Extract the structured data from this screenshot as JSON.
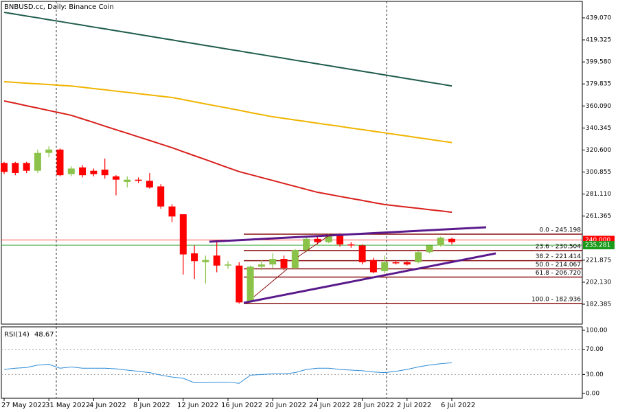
{
  "chart_data": [
    {
      "type": "candlestick",
      "title": "BNBUSD.cc, Daily:  Binance Coin",
      "categories": [
        "27 May 2022",
        null,
        null,
        null,
        "31 May 2022",
        null,
        null,
        null,
        "4 Jun 2022",
        null,
        null,
        null,
        "8 Jun 2022",
        null,
        null,
        null,
        "12 Jun 2022",
        null,
        null,
        null,
        "16 Jun 2022",
        null,
        null,
        null,
        "20 Jun 2022",
        null,
        null,
        null,
        "24 Jun 2022",
        null,
        null,
        null,
        "28 Jun 2022",
        null,
        null,
        null,
        "2 Jul 2022",
        null,
        null,
        null,
        "6 Jul 2022"
      ],
      "open": [
        309,
        309,
        309,
        302,
        318,
        321,
        299,
        305,
        302,
        303,
        297,
        292,
        294,
        293,
        288,
        270,
        263,
        228,
        220,
        226,
        217,
        217,
        185,
        216,
        218,
        223,
        215,
        231,
        241,
        238,
        244,
        236,
        235,
        222,
        212,
        220,
        220,
        220,
        229,
        235,
        241
      ],
      "high": [
        310,
        310,
        310,
        321,
        324,
        322,
        306,
        307,
        304,
        313,
        298,
        297,
        296,
        300,
        290,
        272,
        263,
        235,
        226,
        238,
        221,
        220,
        217,
        222,
        228,
        226,
        232,
        243,
        244,
        245.2,
        246,
        238,
        236,
        224,
        226,
        222,
        221,
        230,
        236,
        243,
        242
      ],
      "low": [
        299,
        298,
        300,
        300,
        314,
        297,
        297,
        296,
        297,
        295,
        280,
        287,
        291,
        286,
        268,
        256,
        209,
        205,
        201,
        211,
        214,
        182.9,
        184,
        213,
        215,
        213,
        214,
        229,
        236,
        237,
        234,
        233,
        218,
        210,
        210,
        218,
        217,
        219,
        228,
        234,
        236
      ],
      "close": [
        301,
        300,
        302,
        318,
        321,
        298,
        304,
        298,
        299,
        298,
        294,
        294,
        293,
        287,
        270,
        261,
        227,
        221,
        222,
        217,
        218,
        184,
        216,
        218,
        223,
        215,
        231,
        241,
        238,
        244,
        236,
        235,
        220,
        211,
        220,
        219,
        218,
        229,
        235,
        242,
        238
      ],
      "up_color": "#8bc34a",
      "down_color": "#ff0000",
      "ylim": [
        164.54,
        453.84
      ],
      "yticks": [
        {
          "value": 439.07,
          "label": "439.070"
        },
        {
          "value": 419.325,
          "label": "419.325"
        },
        {
          "value": 399.58,
          "label": "399.580"
        },
        {
          "value": 379.835,
          "label": "379.835"
        },
        {
          "value": 360.09,
          "label": "360.090"
        },
        {
          "value": 340.345,
          "label": "340.345"
        },
        {
          "value": 320.6,
          "label": "320.600"
        },
        {
          "value": 300.855,
          "label": "300.855"
        },
        {
          "value": 281.11,
          "label": "281.110"
        },
        {
          "value": 261.365,
          "label": "261.365"
        },
        {
          "value": 221.875,
          "label": "221.875"
        },
        {
          "value": 202.13,
          "label": "202.130"
        },
        {
          "value": 182.385,
          "label": "182.385"
        }
      ],
      "moving_averages": [
        {
          "color": "#1f5c4c",
          "values": [
            444,
            442.4,
            440.7,
            439.1,
            437.4,
            435.8,
            434.1,
            432.5,
            430.8,
            429.2,
            427.5,
            425.9,
            424.2,
            422.6,
            420.9,
            419.3,
            417.6,
            416,
            414.3,
            412.7,
            411,
            409.4,
            407.7,
            406.1,
            404.4,
            402.8,
            401.1,
            399.5,
            397.8,
            396.2,
            394.5,
            392.9,
            391.2,
            389.6,
            387.9,
            386.3,
            384.6,
            383,
            381.3,
            379.7,
            378
          ]
        },
        {
          "color": "#f0b400",
          "values": [
            381.8,
            381.2,
            380.5,
            379.9,
            379.3,
            378.6,
            378,
            376.9,
            375.7,
            374.6,
            373.4,
            372.3,
            371.1,
            370,
            368.8,
            367.7,
            365.8,
            363.8,
            361.9,
            360,
            358.1,
            356.2,
            354.2,
            352.3,
            350.4,
            349,
            347.5,
            346.1,
            344.6,
            343.2,
            341.8,
            340.3,
            338.9,
            337.4,
            336,
            334.5,
            333.1,
            331.6,
            330.2,
            328.7,
            327.3
          ]
        },
        {
          "color": "#d8201c",
          "values": [
            364.6,
            362.5,
            360.3,
            358.2,
            356,
            353.9,
            351.7,
            348.5,
            345.3,
            342,
            338.8,
            335.6,
            332.4,
            329.2,
            325.9,
            322.7,
            319.1,
            315.5,
            312,
            308.4,
            304.8,
            301.2,
            298.6,
            295.9,
            293.3,
            290.6,
            288,
            285.3,
            282.7,
            280.9,
            279,
            277.2,
            275.4,
            273.5,
            271.7,
            270.6,
            269.4,
            268.3,
            267.1,
            266,
            264.8
          ]
        }
      ],
      "fib_color": "#8b1010",
      "fib_levels": [
        {
          "value": 245.198,
          "label": "0.0 - 245.198"
        },
        {
          "value": 230.504,
          "label": "23.6 - 230.504"
        },
        {
          "value": 221.414,
          "label": "38.2 - 221.414"
        },
        {
          "value": 214.067,
          "label": "50.0 - 214.067"
        },
        {
          "value": 206.72,
          "label": "61.8 - 206.720"
        },
        {
          "value": 182.936,
          "label": "100.0 - 182.936"
        }
      ],
      "price_lines": [
        {
          "value": 240,
          "label": "240.000",
          "color": "#ff0000"
        },
        {
          "value": 235.281,
          "label": "235.281",
          "color": "#1a9a1a"
        }
      ]
    },
    {
      "type": "line",
      "title": "RSI(14)",
      "color": "#2b8ad6",
      "values": [
        38,
        40,
        41,
        45,
        46,
        40,
        42,
        40,
        40,
        40,
        39,
        37,
        35,
        33,
        29,
        26,
        24,
        17,
        17,
        18,
        18,
        16,
        29,
        30,
        31,
        31,
        33,
        38,
        40,
        40,
        38,
        37,
        36,
        34,
        33,
        35,
        38,
        42,
        45,
        47,
        48.67
      ],
      "ylim": [
        -7.6,
        105.4
      ],
      "yticks": [
        {
          "value": 100,
          "label": "100.00"
        },
        {
          "value": 70,
          "label": "70.00"
        },
        {
          "value": 30,
          "label": "30.00"
        },
        {
          "value": 0,
          "label": "0.00"
        }
      ],
      "levels": [
        70,
        30
      ]
    }
  ]
}
